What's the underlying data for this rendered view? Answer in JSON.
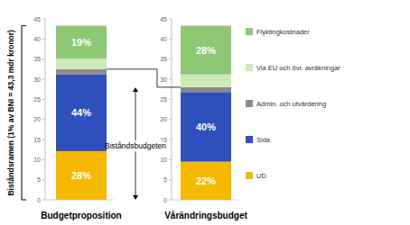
{
  "chart_data": {
    "type": "bar",
    "stacked": true,
    "grid": false,
    "legend": "right",
    "tick_labels": "y",
    "y_label": "Biståndsramen (1% av BNI = 43,3 mdr kronor)",
    "annotation": "Biståndsbudgeten",
    "categories": [
      "Budgetproposition",
      "Vårändringsbudget"
    ],
    "ylim": [
      0,
      45
    ],
    "yticks": [
      0,
      5,
      10,
      15,
      20,
      25,
      30,
      35,
      40,
      45
    ],
    "series": [
      {
        "name": "UD",
        "color": "#f5b800",
        "values": [
          12.1,
          9.5
        ],
        "share_labels": [
          "28%",
          "22%"
        ]
      },
      {
        "name": "Sida",
        "color": "#2f4fbd",
        "values": [
          19.1,
          17.3
        ],
        "share_labels": [
          "44%",
          "40%"
        ]
      },
      {
        "name": "Admin. och utvärdering",
        "color": "#8a8a8a",
        "values": [
          1.3,
          1.2
        ],
        "share_labels": [
          null,
          null
        ]
      },
      {
        "name": "Via EU och övr. avräkningar",
        "color": "#cfe8b8",
        "values": [
          2.6,
          3.2
        ],
        "share_labels": [
          null,
          null
        ]
      },
      {
        "name": "Flyktingkostnader",
        "color": "#8fc875",
        "values": [
          8.2,
          12.1
        ],
        "share_labels": [
          "19%",
          "28%"
        ]
      }
    ]
  }
}
